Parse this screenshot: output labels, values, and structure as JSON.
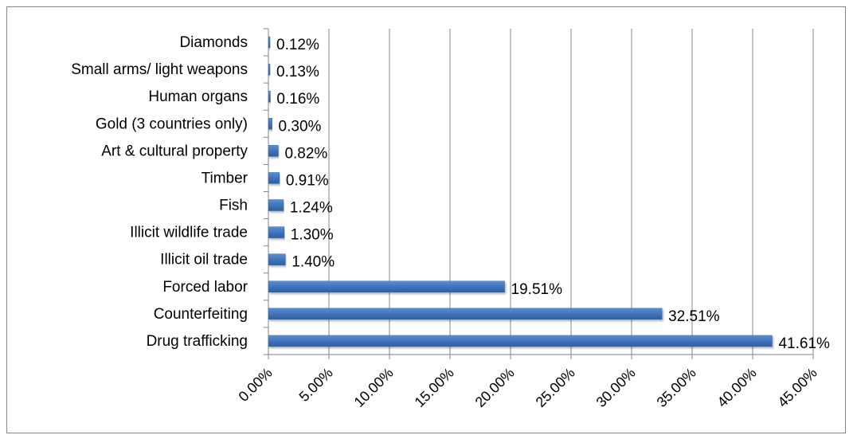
{
  "chart_data": {
    "type": "bar",
    "orientation": "horizontal",
    "categories": [
      "Drug trafficking",
      "Counterfeiting",
      "Forced labor",
      "Illicit oil trade",
      "Illicit wildlife trade",
      "Fish",
      "Timber",
      "Art & cultural property",
      "Gold (3 countries only)",
      "Human organs",
      "Small arms/ light weapons",
      "Diamonds"
    ],
    "values": [
      41.61,
      32.51,
      19.51,
      1.4,
      1.3,
      1.24,
      0.91,
      0.82,
      0.3,
      0.16,
      0.13,
      0.12
    ],
    "value_labels": [
      "41.61%",
      "32.51%",
      "19.51%",
      "1.40%",
      "1.30%",
      "1.24%",
      "0.91%",
      "0.82%",
      "0.30%",
      "0.16%",
      "0.13%",
      "0.12%"
    ],
    "x_ticks": [
      0,
      5,
      10,
      15,
      20,
      25,
      30,
      35,
      40,
      45
    ],
    "x_tick_labels": [
      "0.00%",
      "5.00%",
      "10.00%",
      "15.00%",
      "20.00%",
      "25.00%",
      "30.00%",
      "35.00%",
      "40.00%",
      "45.00%"
    ],
    "xlim": [
      0,
      45
    ],
    "unit": "%",
    "grid": "vertical major gridlines",
    "legend": "none",
    "title": "",
    "xlabel": "",
    "ylabel": "",
    "colors": {
      "bar": "#4a7ebb",
      "bar_edge": "#3a6aa8",
      "gridline": "#868686",
      "axis": "#868686",
      "frame": "#868686"
    }
  }
}
